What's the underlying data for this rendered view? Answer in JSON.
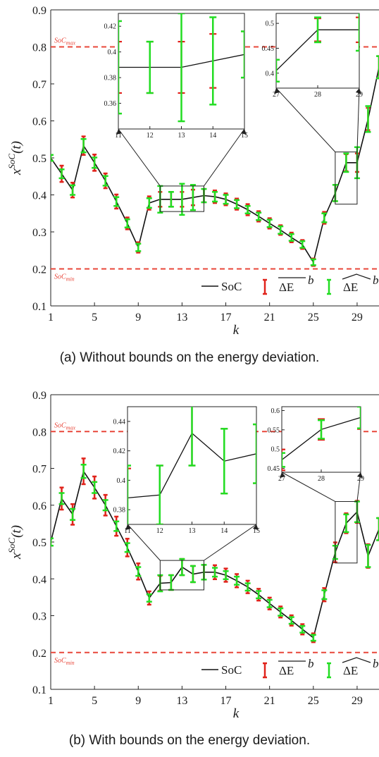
{
  "captions": [
    "(a) Without bounds on the energy deviation.",
    "(b) With bounds on the energy deviation."
  ],
  "colors": {
    "soc": "#111111",
    "dE_bar": "#e0231b",
    "dE_hat": "#22dd22",
    "ref": "#e8473a"
  },
  "legend": {
    "soc": "SoC"
  },
  "chart_data": [
    {
      "type": "line",
      "xlabel": "k",
      "ylabel": "x^{SoC}(t)",
      "xlim": [
        1,
        31
      ],
      "ylim": [
        0.1,
        0.9
      ],
      "xticks": [
        1,
        5,
        9,
        13,
        17,
        21,
        25,
        29
      ],
      "yticks": [
        0.1,
        0.2,
        0.3,
        0.4,
        0.5,
        0.6,
        0.7,
        0.8,
        0.9
      ],
      "ref_lines": [
        {
          "y": 0.8,
          "label": "SoC_max"
        },
        {
          "y": 0.2,
          "label": "SoC_min"
        }
      ],
      "x": [
        1,
        2,
        3,
        4,
        5,
        6,
        7,
        8,
        9,
        10,
        11,
        12,
        13,
        14,
        15,
        16,
        17,
        18,
        19,
        20,
        21,
        22,
        23,
        24,
        25,
        26,
        27,
        28,
        29,
        30,
        31
      ],
      "soc": [
        0.5,
        0.457,
        0.413,
        0.533,
        0.487,
        0.438,
        0.382,
        0.323,
        0.258,
        0.378,
        0.388,
        0.388,
        0.388,
        0.393,
        0.398,
        0.395,
        0.388,
        0.375,
        0.36,
        0.342,
        0.323,
        0.305,
        0.285,
        0.266,
        0.218,
        0.338,
        0.405,
        0.487,
        0.487,
        0.605,
        0.745
      ],
      "dE_bar_half": [
        0.008,
        0.022,
        0.02,
        0.025,
        0.022,
        0.02,
        0.019,
        0.016,
        0.014,
        0.018,
        0.02,
        0.02,
        0.02,
        0.021,
        0.018,
        0.017,
        0.016,
        0.015,
        0.015,
        0.014,
        0.014,
        0.013,
        0.013,
        0.012,
        0.01,
        0.016,
        0.022,
        0.023,
        0.025,
        0.03,
        0.03
      ],
      "dE_hat_half": [
        0.008,
        0.012,
        0.013,
        0.018,
        0.014,
        0.013,
        0.012,
        0.011,
        0.01,
        0.013,
        0.036,
        0.02,
        0.042,
        0.034,
        0.018,
        0.013,
        0.012,
        0.011,
        0.01,
        0.01,
        0.01,
        0.01,
        0.009,
        0.009,
        0.008,
        0.012,
        0.022,
        0.025,
        0.042,
        0.035,
        0.03
      ],
      "insets": [
        {
          "xlim": [
            11,
            15
          ],
          "ylim": [
            0.34,
            0.43
          ],
          "xticks": [
            11,
            12,
            13,
            14,
            15
          ],
          "yticks": [
            0.36,
            0.38,
            0.4,
            0.42
          ],
          "ytick_labels": [
            "0.36",
            "0.38",
            "0.4",
            "0.42"
          ]
        },
        {
          "xlim": [
            27,
            29
          ],
          "ylim": [
            0.37,
            0.52
          ],
          "xticks": [
            27,
            28,
            29
          ],
          "yticks": [
            0.4,
            0.45,
            0.5
          ],
          "ytick_labels": [
            "0.4",
            "0.45",
            "0.5"
          ]
        }
      ]
    },
    {
      "type": "line",
      "xlabel": "k",
      "ylabel": "x^{SoC}(t)",
      "xlim": [
        1,
        31
      ],
      "ylim": [
        0.1,
        0.9
      ],
      "xticks": [
        1,
        5,
        9,
        13,
        17,
        21,
        25,
        29
      ],
      "yticks": [
        0.1,
        0.2,
        0.3,
        0.4,
        0.5,
        0.6,
        0.7,
        0.8,
        0.9
      ],
      "ref_lines": [
        {
          "y": 0.8,
          "label": "SoC_max"
        },
        {
          "y": 0.2,
          "label": "SoC_min"
        }
      ],
      "x": [
        1,
        2,
        3,
        4,
        5,
        6,
        7,
        8,
        9,
        10,
        11,
        12,
        13,
        14,
        15,
        16,
        17,
        18,
        19,
        20,
        21,
        22,
        23,
        24,
        25,
        26,
        27,
        28,
        29,
        30,
        31
      ],
      "soc": [
        0.5,
        0.618,
        0.575,
        0.692,
        0.648,
        0.6,
        0.543,
        0.485,
        0.42,
        0.348,
        0.388,
        0.39,
        0.432,
        0.413,
        0.418,
        0.418,
        0.41,
        0.395,
        0.378,
        0.357,
        0.333,
        0.31,
        0.287,
        0.263,
        0.24,
        0.357,
        0.472,
        0.551,
        0.582,
        0.462,
        0.535
      ],
      "dE_bar_half": [
        0.01,
        0.03,
        0.028,
        0.035,
        0.03,
        0.028,
        0.026,
        0.024,
        0.022,
        0.018,
        0.02,
        0.02,
        0.022,
        0.022,
        0.02,
        0.019,
        0.018,
        0.018,
        0.017,
        0.016,
        0.016,
        0.015,
        0.014,
        0.014,
        0.012,
        0.018,
        0.027,
        0.027,
        0.03,
        0.032,
        0.03
      ],
      "dE_hat_half": [
        0.01,
        0.015,
        0.015,
        0.018,
        0.015,
        0.014,
        0.013,
        0.012,
        0.012,
        0.01,
        0.022,
        0.02,
        0.022,
        0.022,
        0.02,
        0.012,
        0.011,
        0.011,
        0.01,
        0.01,
        0.01,
        0.01,
        0.009,
        0.009,
        0.008,
        0.012,
        0.018,
        0.024,
        0.028,
        0.03,
        0.03
      ],
      "insets": [
        {
          "xlim": [
            11,
            15
          ],
          "ylim": [
            0.37,
            0.45
          ],
          "xticks": [
            11,
            12,
            13,
            14,
            15
          ],
          "yticks": [
            0.38,
            0.4,
            0.42,
            0.44
          ],
          "ytick_labels": [
            "0.38",
            "0.4",
            "0.42",
            "0.44"
          ]
        },
        {
          "xlim": [
            27,
            29
          ],
          "ylim": [
            0.44,
            0.61
          ],
          "xticks": [
            27,
            28,
            29
          ],
          "yticks": [
            0.45,
            0.5,
            0.55,
            0.6
          ],
          "ytick_labels": [
            "0.45",
            "0.5",
            "0.55",
            "0.6"
          ]
        }
      ]
    }
  ]
}
